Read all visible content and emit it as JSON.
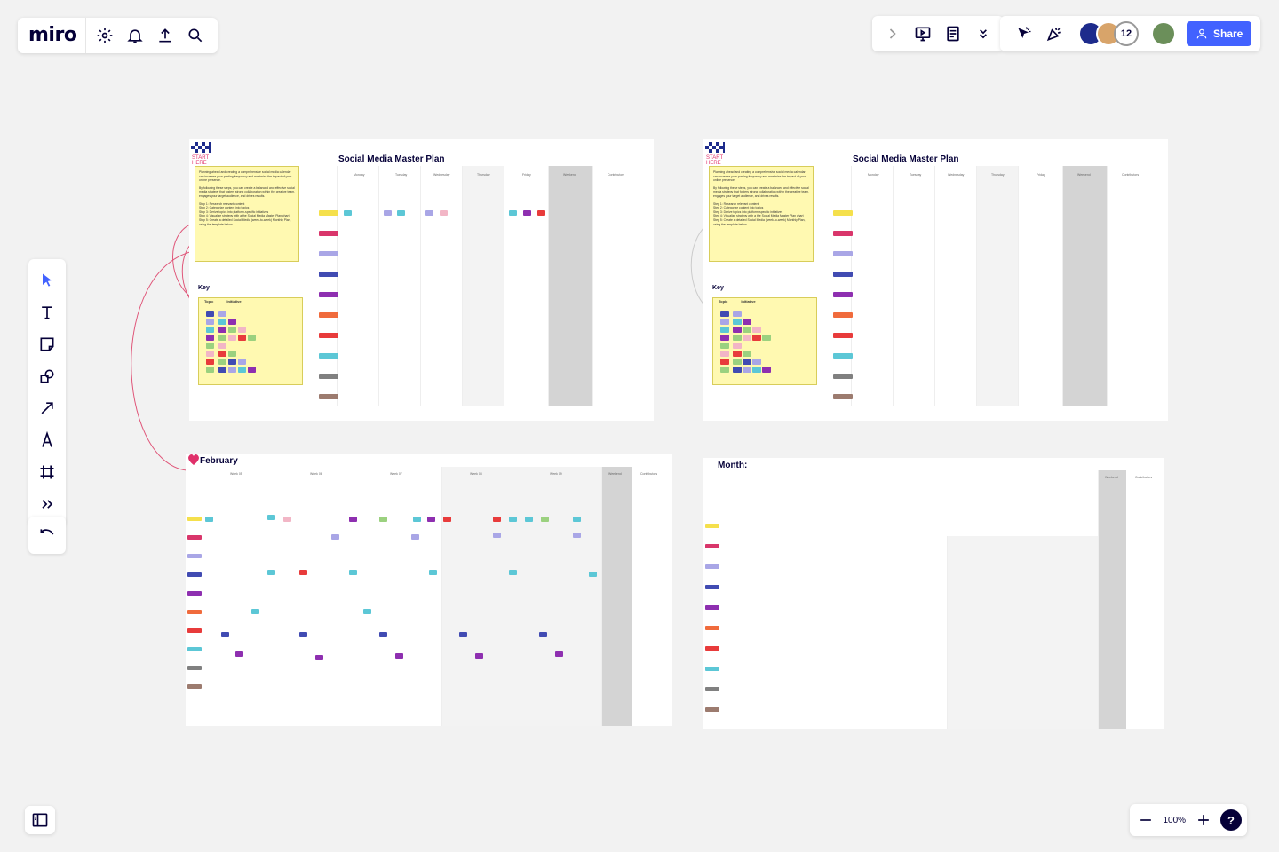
{
  "app": {
    "logo": "miro",
    "toolbar_left_icons": [
      "gear-icon",
      "bell-icon",
      "upload-icon",
      "search-icon"
    ],
    "toolbar_center_icons": [
      "chevron-right-icon",
      "present-icon",
      "notes-icon",
      "chevrons-down-icon"
    ],
    "toolbar_right_icons": [
      "cursor-follow-icon",
      "celebrate-icon"
    ],
    "collaborator_count": "12",
    "share_label": "Share",
    "tools": [
      "select-icon",
      "text-icon",
      "sticky-note-icon",
      "shapes-icon",
      "arrow-icon",
      "pen-icon",
      "frame-icon",
      "more-tools-icon"
    ],
    "zoom_level": "100%",
    "help_label": "?"
  },
  "board": {
    "plan_title": "Social Media Master Plan",
    "start_badge": "START HERE",
    "intro_text": "Planning ahead and creating a comprehensive social media calendar can increase your posting frequency and maximize the impact of your online presence.",
    "intro_text2": "By following these steps, you can create a balanced and effective social media strategy that fosters strong collaboration within the creative team, engages your target audience, and drives results.",
    "steps": [
      "Step 1: Research relevant content",
      "Step 2: Categorize content into topics",
      "Step 3: Derive topics into platform-specific initiatives",
      "Step 4: Visualize strategy with a the Social Media Master Plan chart",
      "Step 5: Create a detailed Social Media (week-to-week) Monthly Plan, using the template below."
    ],
    "key_label": "Key",
    "key_topic": "Topic",
    "key_initiative": "Initiative",
    "weekdays": [
      "Monday",
      "Tuesday",
      "Wednesday",
      "Thursday",
      "Friday",
      "Weekend",
      "Contributors"
    ],
    "feb_title": "February",
    "month_title": "Month:___",
    "weeks": [
      "Week 05",
      "Week 06",
      "Week 07",
      "Week 08",
      "Week 09"
    ],
    "weekend_label": "Weekend",
    "contributors_label": "Contributors",
    "colors": {
      "yellow": "#f5e04c",
      "magenta": "#d9366b",
      "lilac": "#a9a6e6",
      "blue": "#414bb2",
      "purple": "#8e2fb0",
      "orange": "#f06b3c",
      "red": "#e83b3b",
      "cyan": "#5cc7d6",
      "gray": "#808080",
      "brown": "#9c7b6f",
      "pink": "#f2b6c6",
      "green": "#9bd17f"
    }
  }
}
